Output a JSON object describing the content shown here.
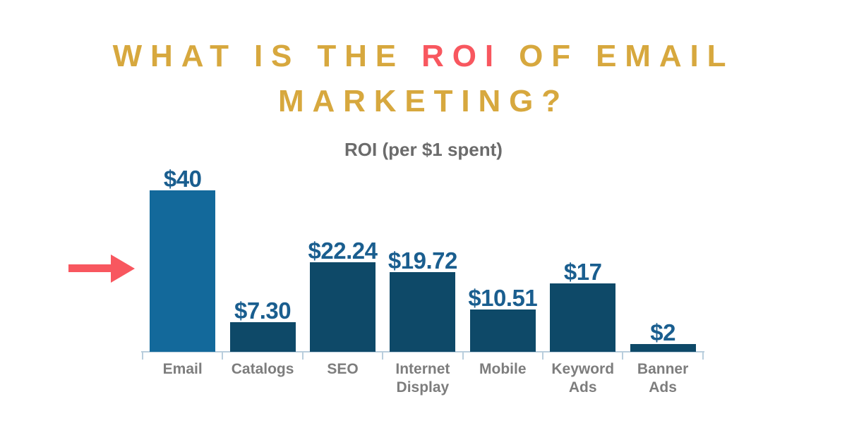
{
  "page": {
    "background_color": "#FFFFFF"
  },
  "title": {
    "part1": "WHAT IS THE ",
    "highlight": "ROI",
    "part2": " OF EMAIL MARKETING?",
    "color": "#D7A83E",
    "highlight_color": "#F8575F"
  },
  "chart_data": {
    "type": "bar",
    "title": "ROI (per $1 spent)",
    "categories": [
      "Email",
      "Catalogs",
      "SEO",
      "Internet Display",
      "Mobile",
      "Keyword Ads",
      "Banner Ads"
    ],
    "values": [
      40,
      7.3,
      22.24,
      19.72,
      10.51,
      17,
      2
    ],
    "value_labels": [
      "$40",
      "$7.30",
      "$22.24",
      "$19.72",
      "$10.51",
      "$17",
      "$2"
    ],
    "tick_labels_display": [
      "Email",
      "Catalogs",
      "SEO",
      "Internet\nDisplay",
      "Mobile",
      "Keyword\nAds",
      "Banner\nAds"
    ],
    "xlabel": "",
    "ylabel": "",
    "ylim": [
      0,
      42
    ],
    "grid": false,
    "legend": false,
    "highlighted_category": "Email",
    "colors": {
      "bar": "#0E4968",
      "highlight_bar": "#13699B",
      "value_label": "#1A5E8F",
      "axis": "#B9CEDD",
      "tick_label": "#7D7D7D",
      "chart_title": "#6B6B6B"
    },
    "annotations": [
      {
        "type": "arrow",
        "direction": "right",
        "target": "Email",
        "color": "#F8575F"
      }
    ]
  }
}
